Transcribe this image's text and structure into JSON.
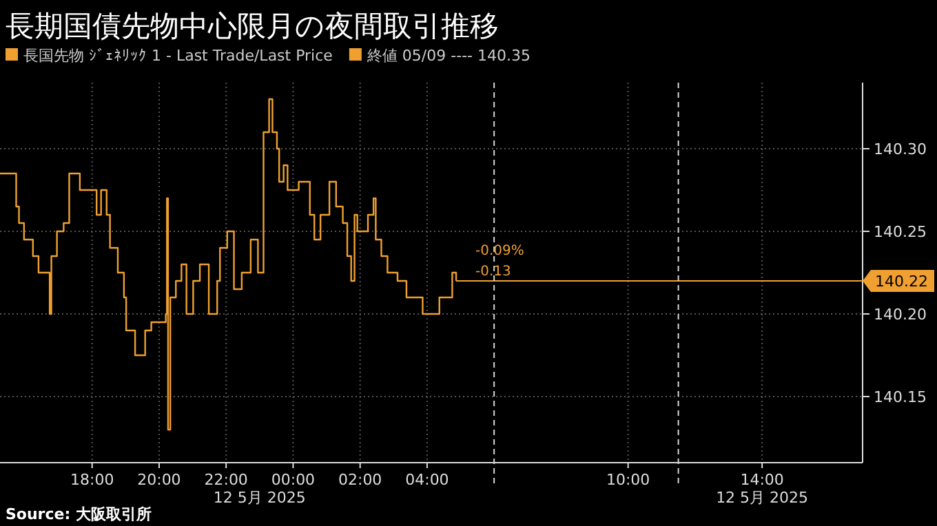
{
  "chart_data": {
    "type": "step",
    "title": "長期国債先物中心限月の夜間取引推移",
    "series": [
      {
        "name": "長国先物 ｼﾞｪﾈﾘｯｸ 1 - Last Trade/Last Price",
        "color": "#f0a030",
        "x": [
          "2025-05-11T15:15",
          "2025-05-11T15:44",
          "2025-05-11T15:49",
          "2025-05-11T15:58",
          "2025-05-11T16:14",
          "2025-05-11T16:24",
          "2025-05-11T16:44",
          "2025-05-11T16:47",
          "2025-05-11T16:57",
          "2025-05-11T17:09",
          "2025-05-11T17:19",
          "2025-05-11T17:38",
          "2025-05-11T18:08",
          "2025-05-11T18:16",
          "2025-05-11T18:26",
          "2025-05-11T18:32",
          "2025-05-11T18:46",
          "2025-05-11T18:57",
          "2025-05-11T19:01",
          "2025-05-11T19:17",
          "2025-05-11T19:35",
          "2025-05-11T19:46",
          "2025-05-11T20:12",
          "2025-05-11T20:14",
          "2025-05-11T20:16",
          "2025-05-11T20:20",
          "2025-05-11T20:30",
          "2025-05-11T20:40",
          "2025-05-11T20:49",
          "2025-05-11T21:01",
          "2025-05-11T21:13",
          "2025-05-11T21:29",
          "2025-05-11T21:44",
          "2025-05-11T21:49",
          "2025-05-11T22:02",
          "2025-05-11T22:14",
          "2025-05-11T22:28",
          "2025-05-11T22:44",
          "2025-05-11T22:57",
          "2025-05-11T23:07",
          "2025-05-11T23:17",
          "2025-05-11T23:23",
          "2025-05-11T23:31",
          "2025-05-11T23:35",
          "2025-05-11T23:43",
          "2025-05-11T23:50",
          "2025-05-12T00:10",
          "2025-05-12T00:30",
          "2025-05-12T00:38",
          "2025-05-12T00:49",
          "2025-05-12T01:05",
          "2025-05-12T01:17",
          "2025-05-12T01:29",
          "2025-05-12T01:37",
          "2025-05-12T01:44",
          "2025-05-12T01:50",
          "2025-05-12T01:55",
          "2025-05-12T02:14",
          "2025-05-12T02:24",
          "2025-05-12T02:28",
          "2025-05-12T02:38",
          "2025-05-12T02:49",
          "2025-05-12T03:07",
          "2025-05-12T03:23",
          "2025-05-12T03:52",
          "2025-05-12T04:22",
          "2025-05-12T04:45",
          "2025-05-12T04:52"
        ],
        "values": [
          140.285,
          140.265,
          140.255,
          140.245,
          140.235,
          140.225,
          140.2,
          140.235,
          140.25,
          140.255,
          140.285,
          140.275,
          140.26,
          140.275,
          140.26,
          140.24,
          140.225,
          140.21,
          140.19,
          140.175,
          140.19,
          140.195,
          140.2,
          140.27,
          140.13,
          140.21,
          140.22,
          140.23,
          140.2,
          140.22,
          140.23,
          140.2,
          140.22,
          140.24,
          140.25,
          140.215,
          140.225,
          140.245,
          140.225,
          140.31,
          140.33,
          140.31,
          140.3,
          140.28,
          140.29,
          140.275,
          140.28,
          140.26,
          140.245,
          140.26,
          140.28,
          140.265,
          140.255,
          140.235,
          140.22,
          140.26,
          140.25,
          140.26,
          140.27,
          140.245,
          140.235,
          140.225,
          140.22,
          140.21,
          140.2,
          140.21,
          140.225,
          140.22
        ]
      }
    ],
    "xlim": [
      "2025-05-11T15:15",
      "2025-05-12T17:00"
    ],
    "ylim": [
      140.11,
      140.34
    ],
    "xticks": [
      {
        "value": "2025-05-11T18:00",
        "label": "18:00"
      },
      {
        "value": "2025-05-11T20:00",
        "label": "20:00"
      },
      {
        "value": "2025-05-11T22:00",
        "label": "22:00"
      },
      {
        "value": "2025-05-12T00:00",
        "label": "00:00"
      },
      {
        "value": "2025-05-12T02:00",
        "label": "02:00"
      },
      {
        "value": "2025-05-12T04:00",
        "label": "04:00"
      },
      {
        "value": "2025-05-12T10:00",
        "label": "10:00"
      },
      {
        "value": "2025-05-12T14:00",
        "label": "14:00"
      }
    ],
    "yticks": [
      140.15,
      {
        "value": 140.2,
        "label": "140.20"
      },
      140.25,
      {
        "value": 140.3,
        "label": "140.30"
      }
    ],
    "grid": true,
    "legend": "top left",
    "ref_lines": [
      {
        "axis": "y",
        "value": 140.22,
        "label": "140.22",
        "color": "#f0a030"
      },
      {
        "axis": "x",
        "value": "2025-05-12T06:00",
        "label": null,
        "color": "#d8d8d8",
        "line_style": "dashed"
      },
      {
        "axis": "x",
        "value": "2025-05-12T11:30",
        "label": null,
        "color": "#d8d8d8",
        "line_style": "dashed"
      }
    ],
    "annotations": [
      "終値 05/09 ---- 140.35",
      "-0.09%",
      "-0.13",
      "12 5月 2025",
      "12 5月 2025",
      "Source: 大阪取引所"
    ]
  }
}
